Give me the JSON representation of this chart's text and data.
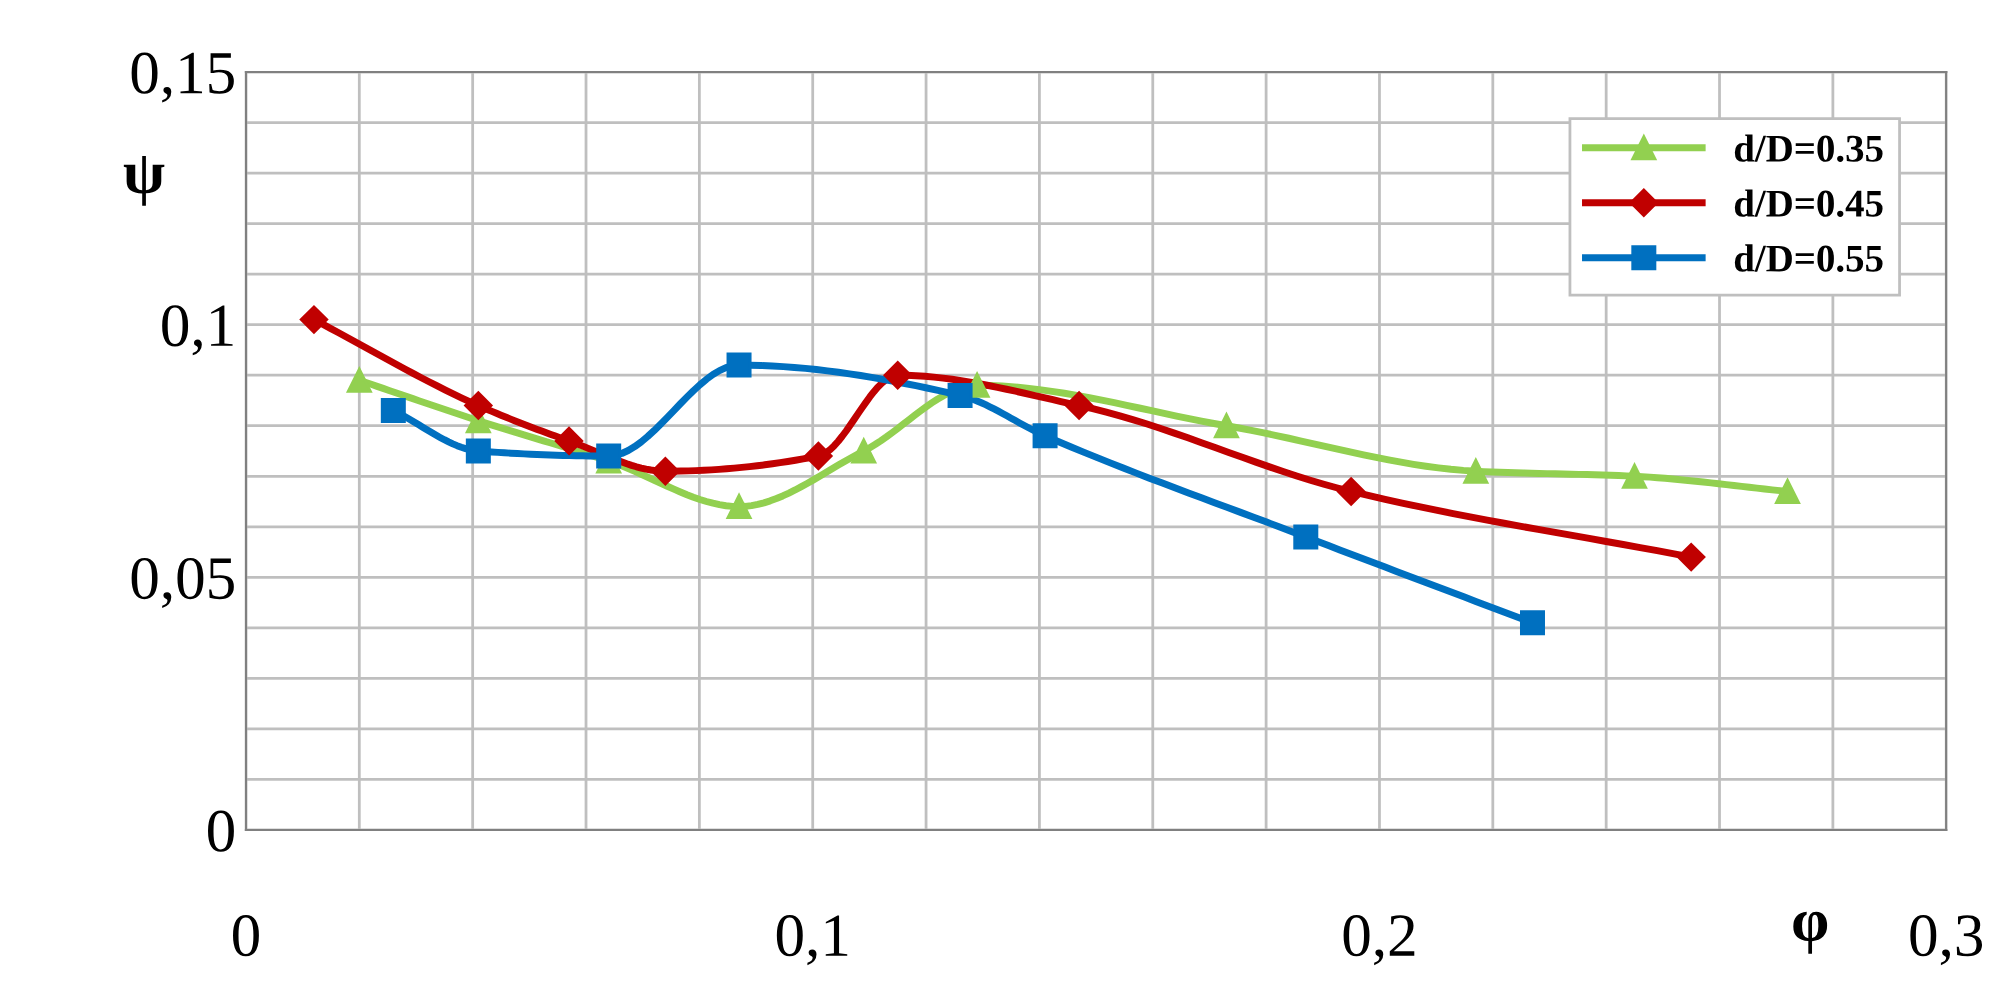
{
  "chart_data": {
    "type": "line",
    "xlabel": "φ",
    "ylabel": "ψ",
    "xlim": [
      0,
      0.3
    ],
    "ylim": [
      0,
      0.15
    ],
    "xticks": [
      0,
      {
        "value": 0.1,
        "label": "0,1"
      },
      {
        "value": 0.2,
        "label": "0,2"
      },
      {
        "value": 0.3,
        "label": "0,3"
      }
    ],
    "yticks": [
      0,
      {
        "value": 0.05,
        "label": "0,05"
      },
      {
        "value": 0.1,
        "label": "0,1"
      },
      {
        "value": 0.15,
        "label": "0,15"
      }
    ],
    "grid": true,
    "legend": "top right",
    "line_style": "solid",
    "series": [
      {
        "name": "d/D=0.35",
        "color": "#92d050",
        "marker": "triangle",
        "x": [
          0.02,
          0.041,
          0.064,
          0.087,
          0.109,
          0.129,
          0.173,
          0.217,
          0.245,
          0.272
        ],
        "values": [
          0.089,
          0.081,
          0.073,
          0.064,
          0.075,
          0.088,
          0.08,
          0.071,
          0.07,
          0.067
        ]
      },
      {
        "name": "d/D=0.45",
        "color": "#c00000",
        "marker": "diamond",
        "x": [
          0.012,
          0.041,
          0.057,
          0.074,
          0.101,
          0.115,
          0.147,
          0.195,
          0.255
        ],
        "values": [
          0.101,
          0.084,
          0.077,
          0.071,
          0.074,
          0.09,
          0.084,
          0.067,
          0.054
        ]
      },
      {
        "name": "d/D=0.55",
        "color": "#0070c0",
        "marker": "square",
        "x": [
          0.026,
          0.041,
          0.064,
          0.087,
          0.126,
          0.141,
          0.187,
          0.227
        ],
        "values": [
          0.083,
          0.075,
          0.074,
          0.092,
          0.086,
          0.078,
          0.058,
          0.041
        ]
      }
    ]
  }
}
